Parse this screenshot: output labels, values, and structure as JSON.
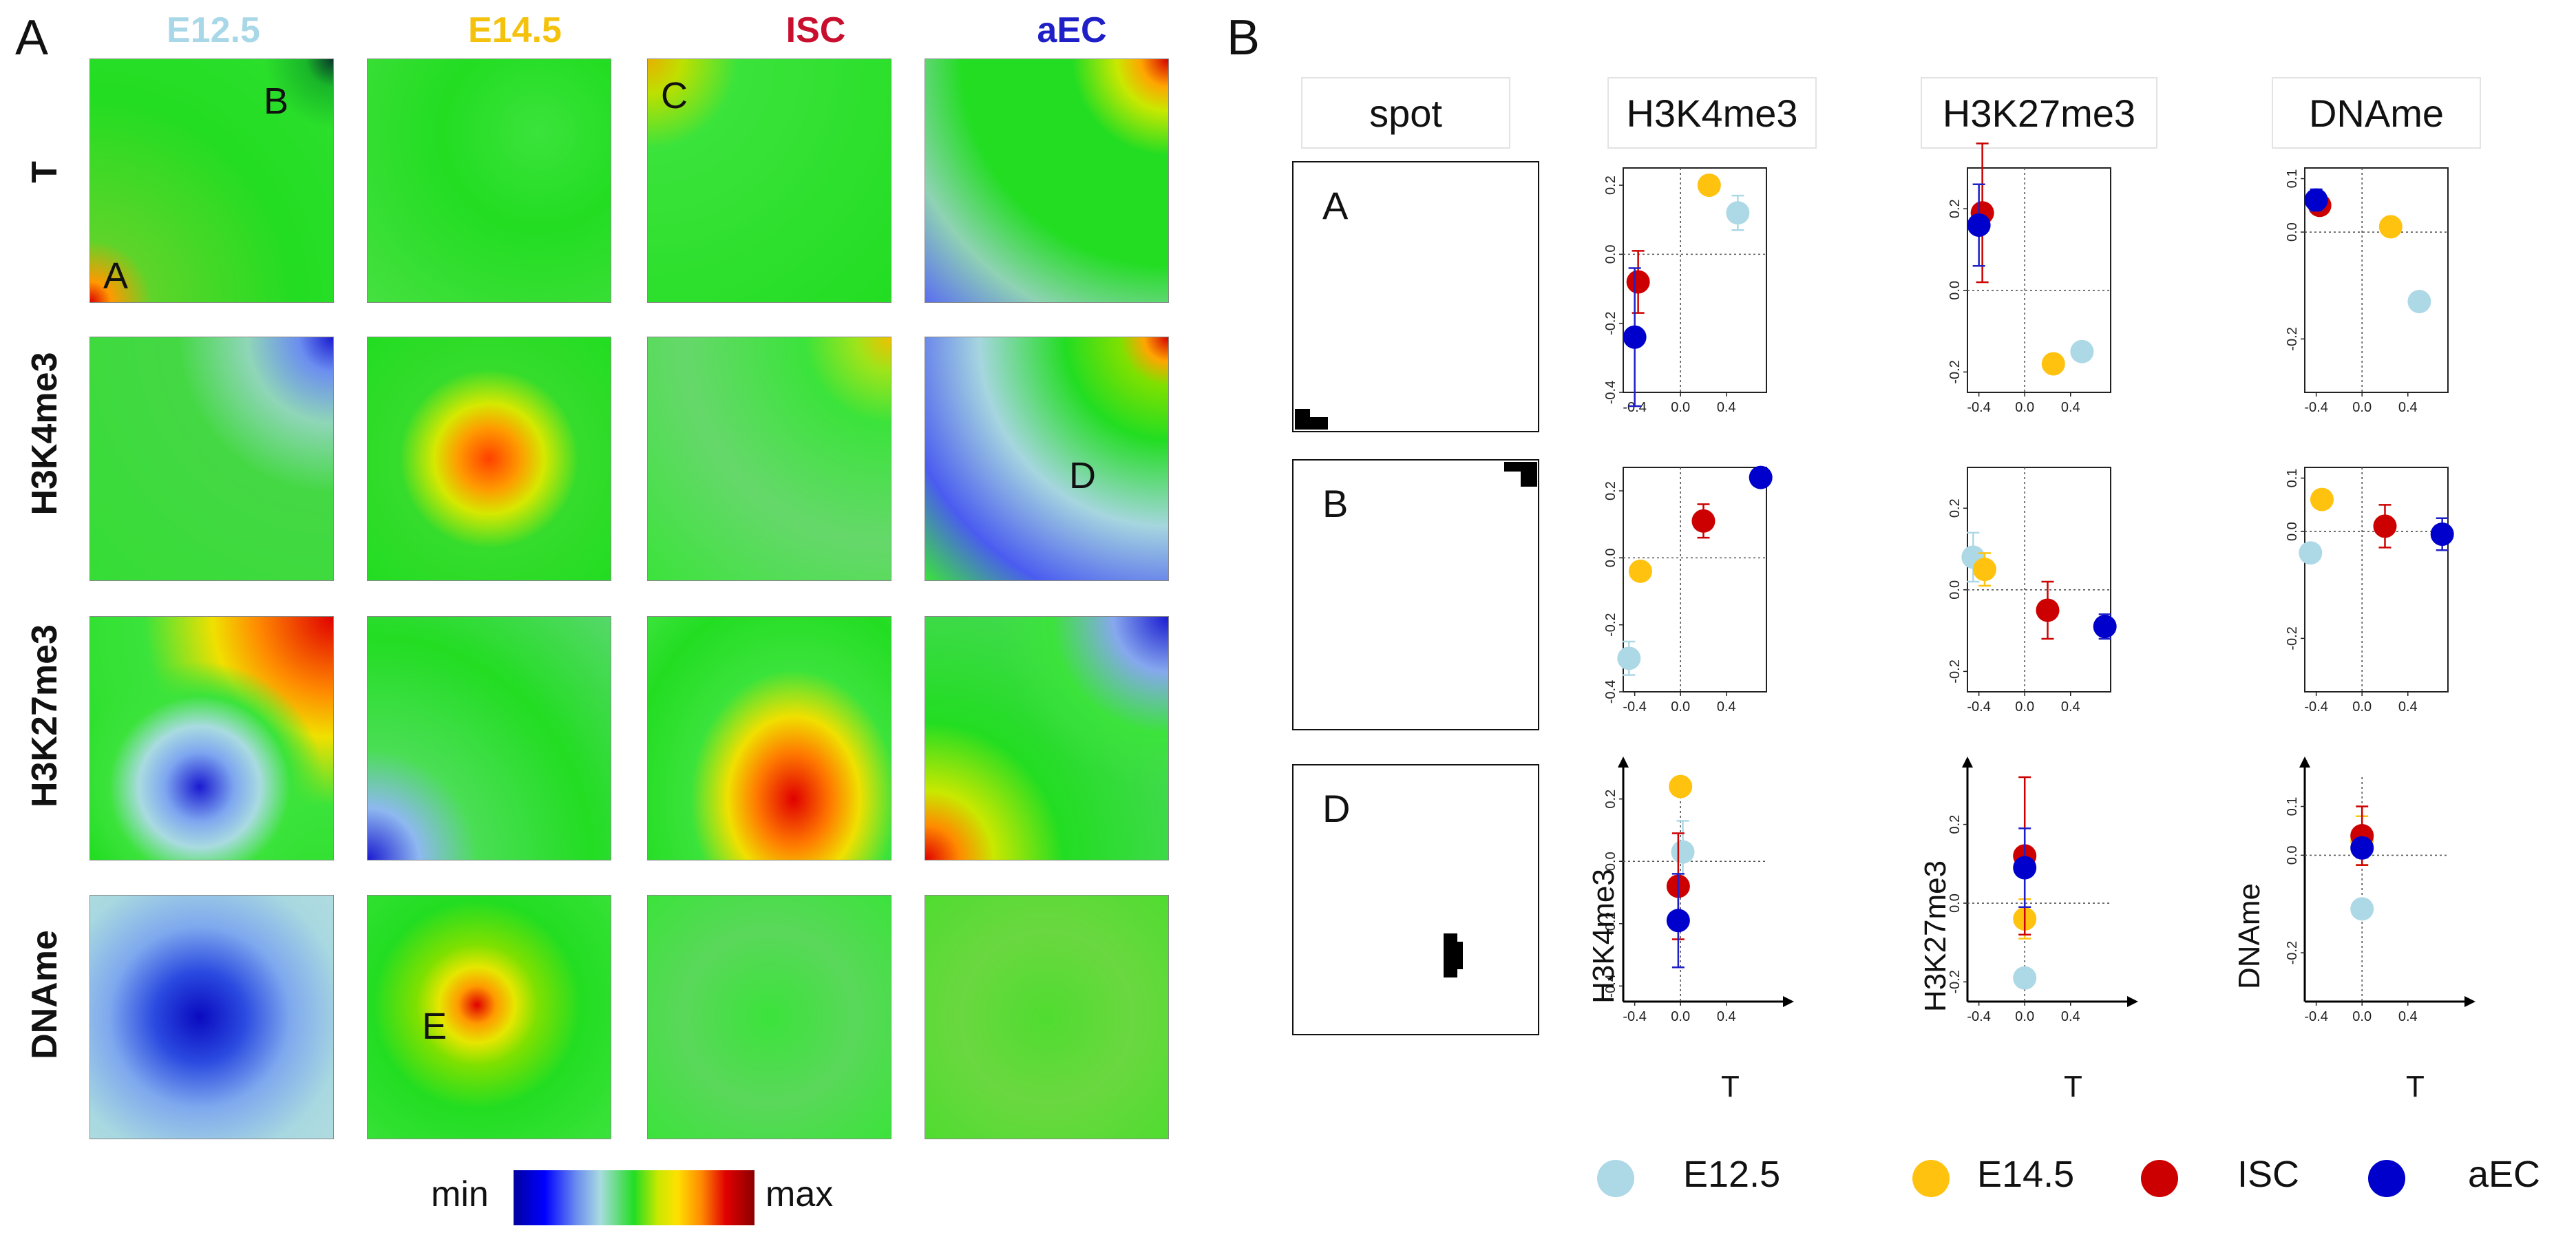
{
  "panel_labels": {
    "a": "A",
    "b": "B"
  },
  "heatmaps": {
    "columns": [
      {
        "label": "E12.5",
        "color": "#a8d8e8"
      },
      {
        "label": "E14.5",
        "color": "#f4c20d"
      },
      {
        "label": "ISC",
        "color": "#c8102e"
      },
      {
        "label": "aEC",
        "color": "#1f1fc8"
      }
    ],
    "rows": [
      "T",
      "H3K4me3",
      "H3K27me3",
      "DNAme"
    ],
    "annotations": {
      "A": "A",
      "B": "B",
      "C": "C",
      "D": "D",
      "E": "E"
    },
    "colorbar": {
      "min_label": "min",
      "max_label": "max"
    }
  },
  "scatter_panel": {
    "header_labels": [
      "spot",
      "H3K4me3",
      "H3K27me3",
      "DNAme"
    ],
    "row_labels": [
      "A",
      "B",
      "D"
    ],
    "x_axis_label": "T",
    "y_axis_labels": [
      "H3K4me3",
      "H3K27me3",
      "DNAme"
    ],
    "x_ticks": [
      "-0.4",
      "0.0",
      "0.4"
    ]
  },
  "legend": [
    {
      "label": "E12.5",
      "color": "#add8e6"
    },
    {
      "label": "E14.5",
      "color": "#ffc20e"
    },
    {
      "label": "ISC",
      "color": "#cc0000"
    },
    {
      "label": "aEC",
      "color": "#0000cc"
    }
  ],
  "chart_data": [
    {
      "type": "scatter",
      "title": "A / H3K4me3",
      "ylim": [
        -0.4,
        0.25
      ],
      "yticks": [
        0.2,
        0.0,
        -0.2,
        -0.4
      ],
      "xlim": [
        -0.5,
        0.75
      ],
      "series": [
        {
          "name": "E12.5",
          "x": 0.5,
          "y": 0.12,
          "err": 0.05
        },
        {
          "name": "E14.5",
          "x": 0.25,
          "y": 0.2,
          "err": 0
        },
        {
          "name": "ISC",
          "x": -0.37,
          "y": -0.08,
          "err": 0.09
        },
        {
          "name": "aEC",
          "x": -0.4,
          "y": -0.24,
          "err": 0.2
        }
      ]
    },
    {
      "type": "scatter",
      "title": "A / H3K27me3",
      "ylim": [
        -0.25,
        0.3
      ],
      "yticks": [
        0.2,
        0.0,
        -0.2
      ],
      "xlim": [
        -0.5,
        0.75
      ],
      "series": [
        {
          "name": "E12.5",
          "x": 0.5,
          "y": -0.15,
          "err": 0
        },
        {
          "name": "E14.5",
          "x": 0.25,
          "y": -0.18,
          "err": 0.02
        },
        {
          "name": "ISC",
          "x": -0.37,
          "y": 0.19,
          "err": 0.17
        },
        {
          "name": "aEC",
          "x": -0.4,
          "y": 0.16,
          "err": 0.1
        }
      ]
    },
    {
      "type": "scatter",
      "title": "A / DNAme",
      "ylim": [
        -0.3,
        0.12
      ],
      "yticks": [
        0.1,
        0.0,
        -0.2
      ],
      "xlim": [
        -0.5,
        0.75
      ],
      "series": [
        {
          "name": "E12.5",
          "x": 0.5,
          "y": -0.13,
          "err": 0
        },
        {
          "name": "E14.5",
          "x": 0.25,
          "y": 0.01,
          "err": 0
        },
        {
          "name": "ISC",
          "x": -0.37,
          "y": 0.05,
          "err": 0.015
        },
        {
          "name": "aEC",
          "x": -0.4,
          "y": 0.06,
          "err": 0.02
        }
      ]
    },
    {
      "type": "scatter",
      "title": "B / H3K4me3",
      "ylim": [
        -0.4,
        0.27
      ],
      "yticks": [
        0.2,
        0.0,
        -0.2,
        -0.4
      ],
      "xlim": [
        -0.5,
        0.75
      ],
      "series": [
        {
          "name": "E12.5",
          "x": -0.45,
          "y": -0.3,
          "err": 0.05
        },
        {
          "name": "E14.5",
          "x": -0.35,
          "y": -0.04,
          "err": 0
        },
        {
          "name": "ISC",
          "x": 0.2,
          "y": 0.11,
          "err": 0.05
        },
        {
          "name": "aEC",
          "x": 0.7,
          "y": 0.24,
          "err": 0
        }
      ]
    },
    {
      "type": "scatter",
      "title": "B / H3K27me3",
      "ylim": [
        -0.25,
        0.3
      ],
      "yticks": [
        0.2,
        0.0,
        -0.2
      ],
      "xlim": [
        -0.5,
        0.75
      ],
      "series": [
        {
          "name": "E12.5",
          "x": -0.45,
          "y": 0.08,
          "err": 0.06
        },
        {
          "name": "E14.5",
          "x": -0.35,
          "y": 0.05,
          "err": 0.04
        },
        {
          "name": "ISC",
          "x": 0.2,
          "y": -0.05,
          "err": 0.07
        },
        {
          "name": "aEC",
          "x": 0.7,
          "y": -0.09,
          "err": 0.03
        }
      ]
    },
    {
      "type": "scatter",
      "title": "B / DNAme",
      "ylim": [
        -0.3,
        0.12
      ],
      "yticks": [
        0.1,
        0.0,
        -0.2
      ],
      "xlim": [
        -0.5,
        0.75
      ],
      "series": [
        {
          "name": "E12.5",
          "x": -0.45,
          "y": -0.04,
          "err": 0
        },
        {
          "name": "E14.5",
          "x": -0.35,
          "y": 0.06,
          "err": 0
        },
        {
          "name": "ISC",
          "x": 0.2,
          "y": 0.01,
          "err": 0.04
        },
        {
          "name": "aEC",
          "x": 0.7,
          "y": -0.005,
          "err": 0.03
        }
      ]
    },
    {
      "type": "scatter",
      "title": "D / H3K4me3",
      "ylim": [
        -0.45,
        0.27
      ],
      "yticks": [
        0.2,
        0.0,
        -0.2,
        -0.4
      ],
      "xlim": [
        -0.5,
        0.75
      ],
      "series": [
        {
          "name": "E12.5",
          "x": 0.02,
          "y": 0.03,
          "err": 0.1
        },
        {
          "name": "E14.5",
          "x": 0.0,
          "y": 0.24,
          "err": 0
        },
        {
          "name": "ISC",
          "x": -0.02,
          "y": -0.08,
          "err": 0.17
        },
        {
          "name": "aEC",
          "x": -0.02,
          "y": -0.19,
          "err": 0.15
        }
      ]
    },
    {
      "type": "scatter",
      "title": "D / H3K27me3",
      "ylim": [
        -0.25,
        0.32
      ],
      "yticks": [
        0.2,
        0.0,
        -0.2
      ],
      "xlim": [
        -0.5,
        0.75
      ],
      "series": [
        {
          "name": "E12.5",
          "x": 0.0,
          "y": -0.19,
          "err": 0
        },
        {
          "name": "E14.5",
          "x": 0.0,
          "y": -0.04,
          "err": 0.05
        },
        {
          "name": "ISC",
          "x": 0.0,
          "y": 0.12,
          "err": 0.2
        },
        {
          "name": "aEC",
          "x": 0.0,
          "y": 0.09,
          "err": 0.1
        }
      ]
    },
    {
      "type": "scatter",
      "title": "D / DNAme",
      "ylim": [
        -0.3,
        0.16
      ],
      "yticks": [
        0.1,
        0.0,
        -0.2
      ],
      "xlim": [
        -0.5,
        0.75
      ],
      "series": [
        {
          "name": "E12.5",
          "x": 0.0,
          "y": -0.11,
          "err": 0
        },
        {
          "name": "E14.5",
          "x": 0.0,
          "y": 0.03,
          "err": 0.05
        },
        {
          "name": "ISC",
          "x": 0.0,
          "y": 0.04,
          "err": 0.06
        },
        {
          "name": "aEC",
          "x": 0.0,
          "y": 0.015,
          "err": 0.02
        }
      ]
    }
  ]
}
